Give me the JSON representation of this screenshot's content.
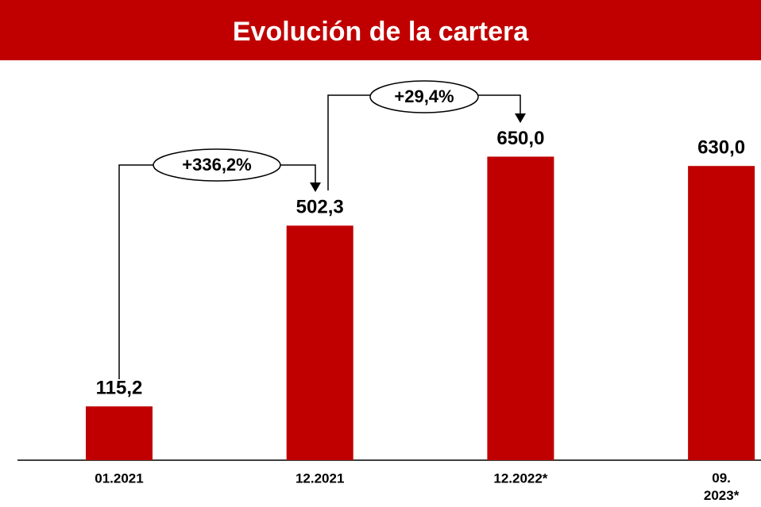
{
  "chart_data": {
    "type": "bar",
    "title": "Evolución de la cartera",
    "categories": [
      "01.2021",
      "12.2021",
      "12.2022*",
      "09. 2023*"
    ],
    "values": [
      115.2,
      502.3,
      650.0,
      630.0
    ],
    "value_labels": [
      "115,2",
      "502,3",
      "650,0",
      "630,0"
    ],
    "color": "#c00000",
    "ylim": [
      0,
      700
    ],
    "annotations": [
      "+336,2%",
      "+29,4%"
    ]
  }
}
